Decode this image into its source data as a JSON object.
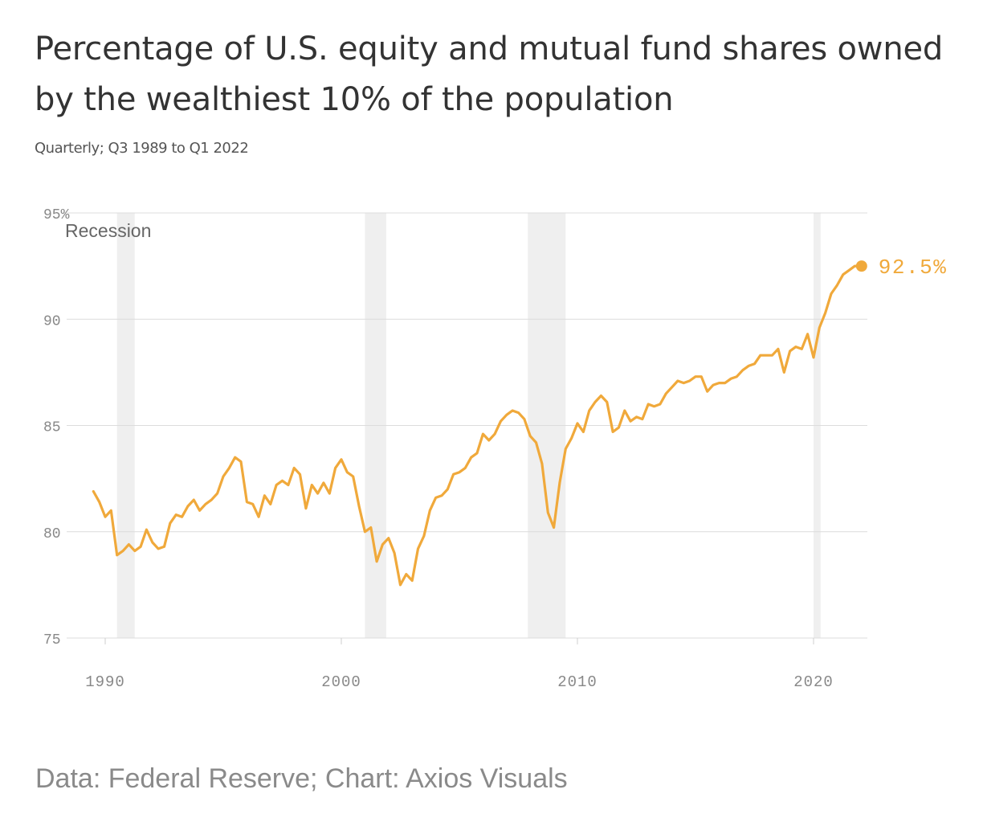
{
  "title": "Percentage of U.S. equity and mutual fund shares owned by the wealthiest 10% of the population",
  "subtitle": "Quarterly; Q3 1989 to Q1 2022",
  "source": "Data: Federal Reserve; Chart: Axios Visuals",
  "chart_data": {
    "type": "line",
    "title": "Percentage of U.S. equity and mutual fund shares owned by the wealthiest 10% of the population",
    "subtitle": "Quarterly; Q3 1989 to Q1 2022",
    "xlabel": "",
    "ylabel": "",
    "xlim": [
      1989.0,
      2022.8
    ],
    "ylim": [
      75,
      95
    ],
    "grid": true,
    "y_ticks": [
      75,
      80,
      85,
      90,
      95
    ],
    "y_tick_labels": [
      "75",
      "80",
      "85",
      "90",
      "95%"
    ],
    "x_ticks": [
      1990,
      2000,
      2010,
      2020
    ],
    "x_tick_labels": [
      "1990",
      "2000",
      "2010",
      "2020"
    ],
    "line_color": "#f0a93b",
    "recession_color": "#efefef",
    "recession_label": "Recession",
    "recessions": [
      [
        1990.5,
        1991.25
      ],
      [
        2001.0,
        2001.9
      ],
      [
        2007.9,
        2009.5
      ],
      [
        2020.0,
        2020.3
      ]
    ],
    "end_label": "92.5%",
    "series": [
      {
        "values": [
          [
            1989.5,
            81.9
          ],
          [
            1989.75,
            81.4
          ],
          [
            1990.0,
            80.7
          ],
          [
            1990.25,
            81.0
          ],
          [
            1990.5,
            78.9
          ],
          [
            1990.75,
            79.1
          ],
          [
            1991.0,
            79.4
          ],
          [
            1991.25,
            79.1
          ],
          [
            1991.5,
            79.3
          ],
          [
            1991.75,
            80.1
          ],
          [
            1992.0,
            79.5
          ],
          [
            1992.25,
            79.2
          ],
          [
            1992.5,
            79.3
          ],
          [
            1992.75,
            80.4
          ],
          [
            1993.0,
            80.8
          ],
          [
            1993.25,
            80.7
          ],
          [
            1993.5,
            81.2
          ],
          [
            1993.75,
            81.5
          ],
          [
            1994.0,
            81.0
          ],
          [
            1994.25,
            81.3
          ],
          [
            1994.5,
            81.5
          ],
          [
            1994.75,
            81.8
          ],
          [
            1995.0,
            82.6
          ],
          [
            1995.25,
            83.0
          ],
          [
            1995.5,
            83.5
          ],
          [
            1995.75,
            83.3
          ],
          [
            1996.0,
            81.4
          ],
          [
            1996.25,
            81.3
          ],
          [
            1996.5,
            80.7
          ],
          [
            1996.75,
            81.7
          ],
          [
            1997.0,
            81.3
          ],
          [
            1997.25,
            82.2
          ],
          [
            1997.5,
            82.4
          ],
          [
            1997.75,
            82.2
          ],
          [
            1998.0,
            83.0
          ],
          [
            1998.25,
            82.7
          ],
          [
            1998.5,
            81.1
          ],
          [
            1998.75,
            82.2
          ],
          [
            1999.0,
            81.8
          ],
          [
            1999.25,
            82.3
          ],
          [
            1999.5,
            81.8
          ],
          [
            1999.75,
            83.0
          ],
          [
            2000.0,
            83.4
          ],
          [
            2000.25,
            82.8
          ],
          [
            2000.5,
            82.6
          ],
          [
            2000.75,
            81.2
          ],
          [
            2001.0,
            80.0
          ],
          [
            2001.25,
            80.2
          ],
          [
            2001.5,
            78.6
          ],
          [
            2001.75,
            79.4
          ],
          [
            2002.0,
            79.7
          ],
          [
            2002.25,
            79.0
          ],
          [
            2002.5,
            77.5
          ],
          [
            2002.75,
            78.0
          ],
          [
            2003.0,
            77.7
          ],
          [
            2003.25,
            79.2
          ],
          [
            2003.5,
            79.8
          ],
          [
            2003.75,
            81.0
          ],
          [
            2004.0,
            81.6
          ],
          [
            2004.25,
            81.7
          ],
          [
            2004.5,
            82.0
          ],
          [
            2004.75,
            82.7
          ],
          [
            2005.0,
            82.8
          ],
          [
            2005.25,
            83.0
          ],
          [
            2005.5,
            83.5
          ],
          [
            2005.75,
            83.7
          ],
          [
            2006.0,
            84.6
          ],
          [
            2006.25,
            84.3
          ],
          [
            2006.5,
            84.6
          ],
          [
            2006.75,
            85.2
          ],
          [
            2007.0,
            85.5
          ],
          [
            2007.25,
            85.7
          ],
          [
            2007.5,
            85.6
          ],
          [
            2007.75,
            85.3
          ],
          [
            2008.0,
            84.5
          ],
          [
            2008.25,
            84.2
          ],
          [
            2008.5,
            83.2
          ],
          [
            2008.75,
            80.9
          ],
          [
            2009.0,
            80.2
          ],
          [
            2009.25,
            82.3
          ],
          [
            2009.5,
            83.9
          ],
          [
            2009.75,
            84.4
          ],
          [
            2010.0,
            85.1
          ],
          [
            2010.25,
            84.7
          ],
          [
            2010.5,
            85.7
          ],
          [
            2010.75,
            86.1
          ],
          [
            2011.0,
            86.4
          ],
          [
            2011.25,
            86.1
          ],
          [
            2011.5,
            84.7
          ],
          [
            2011.75,
            84.9
          ],
          [
            2012.0,
            85.7
          ],
          [
            2012.25,
            85.2
          ],
          [
            2012.5,
            85.4
          ],
          [
            2012.75,
            85.3
          ],
          [
            2013.0,
            86.0
          ],
          [
            2013.25,
            85.9
          ],
          [
            2013.5,
            86.0
          ],
          [
            2013.75,
            86.5
          ],
          [
            2014.0,
            86.8
          ],
          [
            2014.25,
            87.1
          ],
          [
            2014.5,
            87.0
          ],
          [
            2014.75,
            87.1
          ],
          [
            2015.0,
            87.3
          ],
          [
            2015.25,
            87.3
          ],
          [
            2015.5,
            86.6
          ],
          [
            2015.75,
            86.9
          ],
          [
            2016.0,
            87.0
          ],
          [
            2016.25,
            87.0
          ],
          [
            2016.5,
            87.2
          ],
          [
            2016.75,
            87.3
          ],
          [
            2017.0,
            87.6
          ],
          [
            2017.25,
            87.8
          ],
          [
            2017.5,
            87.9
          ],
          [
            2017.75,
            88.3
          ],
          [
            2018.0,
            88.3
          ],
          [
            2018.25,
            88.3
          ],
          [
            2018.5,
            88.6
          ],
          [
            2018.75,
            87.5
          ],
          [
            2019.0,
            88.5
          ],
          [
            2019.25,
            88.7
          ],
          [
            2019.5,
            88.6
          ],
          [
            2019.75,
            89.3
          ],
          [
            2020.0,
            88.2
          ],
          [
            2020.25,
            89.6
          ],
          [
            2020.5,
            90.3
          ],
          [
            2020.75,
            91.2
          ],
          [
            2021.0,
            91.6
          ],
          [
            2021.25,
            92.1
          ],
          [
            2021.5,
            92.3
          ],
          [
            2021.75,
            92.5
          ],
          [
            2022.0,
            92.5
          ]
        ]
      }
    ]
  }
}
